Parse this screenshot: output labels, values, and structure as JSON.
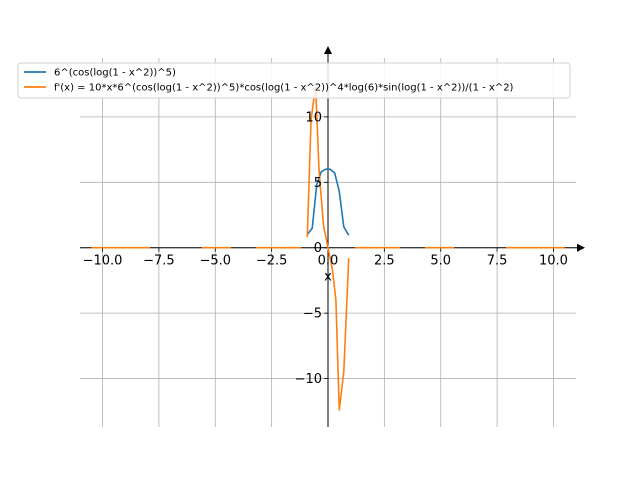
{
  "chart_data": {
    "type": "line",
    "title": "",
    "xlabel": "x",
    "ylabel": "",
    "xlim": [
      -11.0,
      11.0
    ],
    "ylim": [
      -13.7,
      14.5
    ],
    "grid": true,
    "legend_position": "top-left",
    "x_ticks": [
      -10.0,
      -7.5,
      -5.0,
      -2.5,
      0.0,
      2.5,
      5.0,
      7.5,
      10.0
    ],
    "x_tick_labels": [
      "−10.0",
      "−7.5",
      "−5.0",
      "−2.5",
      "0.0",
      "2.5",
      "5.0",
      "7.5",
      "10.0"
    ],
    "y_ticks": [
      -10,
      -5,
      0,
      5,
      10
    ],
    "y_tick_labels": [
      "−10",
      "−5",
      "0",
      "5",
      "10"
    ],
    "series": [
      {
        "name": "6^(cos(log(1 - x^2))^5)",
        "color": "#1f77b4",
        "segments": [
          [
            [
              -0.92,
              1.0
            ],
            [
              -0.7,
              1.5
            ],
            [
              -0.5,
              4.8
            ],
            [
              -0.3,
              5.8
            ],
            [
              -0.1,
              6.0
            ],
            [
              0.1,
              6.0
            ],
            [
              0.3,
              5.7
            ],
            [
              0.5,
              4.3
            ],
            [
              0.7,
              1.6
            ],
            [
              0.92,
              0.95
            ]
          ]
        ]
      },
      {
        "name": "f'(x) = 10*x*6^(cos(log(1 - x^2))^5)*cos(log(1 - x^2))^4*log(6)*sin(log(1 - x^2))/(1 - x^2)",
        "color": "#ff7f0e",
        "segments": [
          [
            [
              -10.5,
              0.0
            ],
            [
              -7.9,
              0.0
            ]
          ],
          [
            [
              -5.6,
              0.0
            ],
            [
              -4.3,
              0.0
            ]
          ],
          [
            [
              -3.2,
              0.0
            ],
            [
              -1.2,
              0.0
            ]
          ],
          [
            [
              -0.92,
              0.8
            ],
            [
              -0.75,
              9.8
            ],
            [
              -0.55,
              12.4
            ],
            [
              -0.4,
              6.0
            ],
            [
              -0.2,
              1.7
            ],
            [
              0.0,
              0.0
            ],
            [
              0.2,
              -1.7
            ],
            [
              0.35,
              -4.0
            ],
            [
              0.5,
              -12.4
            ],
            [
              0.7,
              -9.5
            ],
            [
              0.92,
              -0.8
            ]
          ],
          [
            [
              1.2,
              0.0
            ],
            [
              3.2,
              0.0
            ]
          ],
          [
            [
              4.3,
              0.0
            ],
            [
              5.6,
              0.0
            ]
          ],
          [
            [
              7.9,
              0.0
            ],
            [
              10.5,
              0.0
            ]
          ]
        ]
      }
    ]
  }
}
